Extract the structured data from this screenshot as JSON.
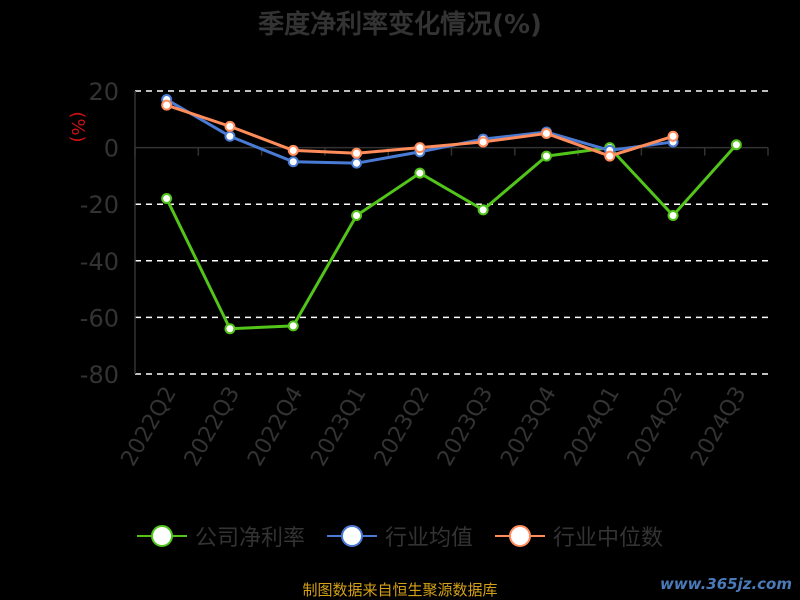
{
  "chart_data": {
    "type": "line",
    "title": "季度净利率变化情况(%)",
    "ylabel": "(%)",
    "ylim": [
      -80,
      20
    ],
    "yticks": [
      20,
      0,
      -20,
      -40,
      -60,
      -80
    ],
    "grid": true,
    "legend_position": "bottom",
    "categories": [
      "2022Q2",
      "2022Q3",
      "2022Q4",
      "2023Q1",
      "2023Q2",
      "2023Q3",
      "2023Q4",
      "2024Q1",
      "2024Q2",
      "2024Q3"
    ],
    "series": [
      {
        "name": "公司净利率",
        "color": "#52c41a",
        "values": [
          -18,
          -64,
          -63,
          -24,
          -9,
          -22,
          -3,
          0,
          -24,
          1
        ]
      },
      {
        "name": "行业均值",
        "color": "#4a7bd4",
        "values": [
          17,
          4,
          -5,
          -5.5,
          -1.5,
          3,
          5.5,
          -1,
          2,
          null
        ]
      },
      {
        "name": "行业中位数",
        "color": "#ff8c5a",
        "values": [
          15,
          7.5,
          -1,
          -2,
          0,
          2,
          5,
          -3,
          4,
          null
        ]
      }
    ]
  },
  "footer_text": "制图数据来自恒生聚源数据库",
  "watermark_text": "www.365jz.com"
}
